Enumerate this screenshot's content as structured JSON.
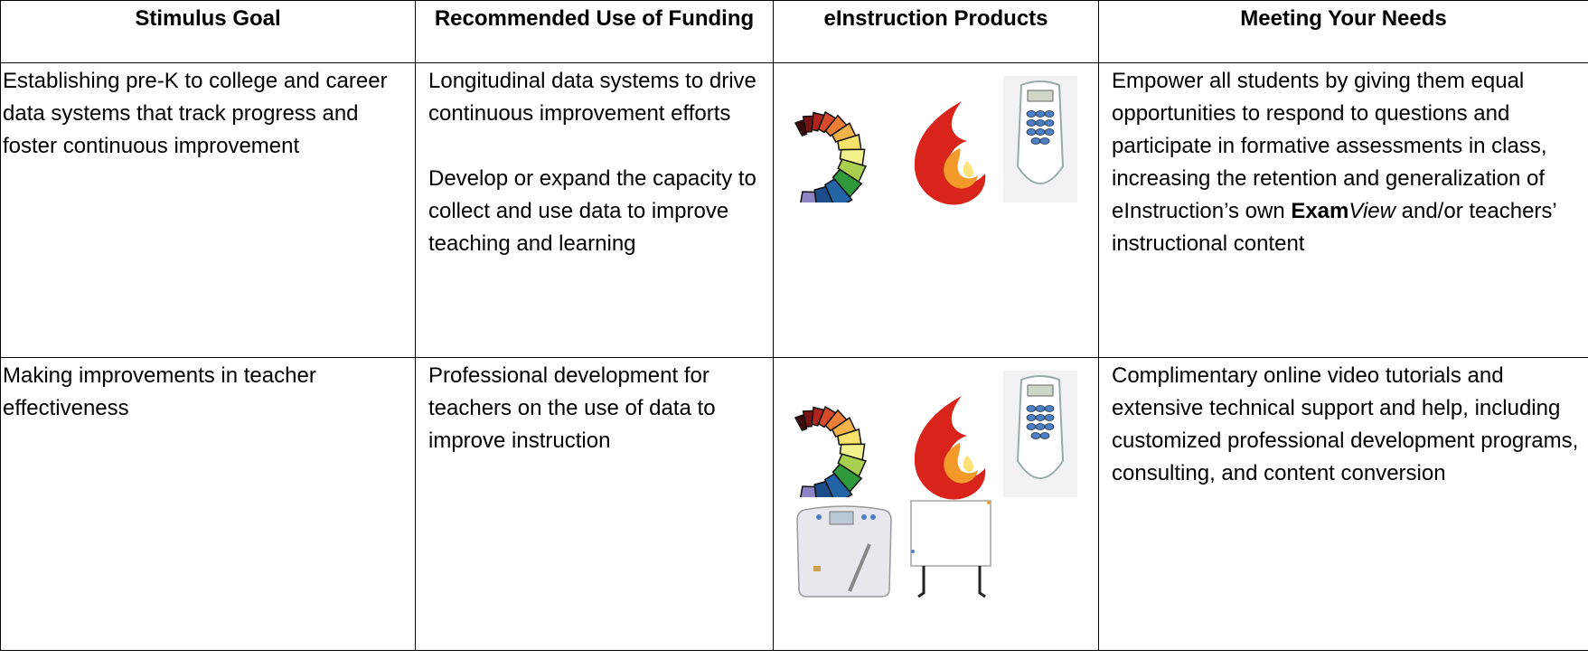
{
  "table": {
    "header": [
      "Stimulus Goal",
      "Recommended Use of Funding",
      "eInstruction Products",
      "Meeting Your Needs"
    ],
    "rows": [
      {
        "goal": "Establishing pre-K to college and career data systems that track progress and foster continuous improvement",
        "uses": [
          "Longitudinal data systems to drive continuous improvement efforts",
          "Develop or expand the capacity to collect and use data to improve teaching and learning"
        ],
        "needs": [
          {
            "text": "Empower all students by giving them equal opportunities to respond to questions and participate in formative assessments in class, increasing the retention and generalization of eInstruction’s own ",
            "style": "normal"
          },
          {
            "text": "Exam",
            "style": "bold"
          },
          {
            "text": "View",
            "style": "italic"
          },
          {
            "text": " and/or teachers’ instructional content",
            "style": "normal"
          }
        ]
      },
      {
        "goal": "Making improvements in teacher effectiveness",
        "uses": [
          "Professional development for teachers on the use of data to improve instruction"
        ],
        "needs": [
          {
            "text": "Complimentary online video tutorials and extensive technical support and help, including customized professional development programs, consulting, and content conversion",
            "style": "normal"
          }
        ]
      }
    ]
  }
}
